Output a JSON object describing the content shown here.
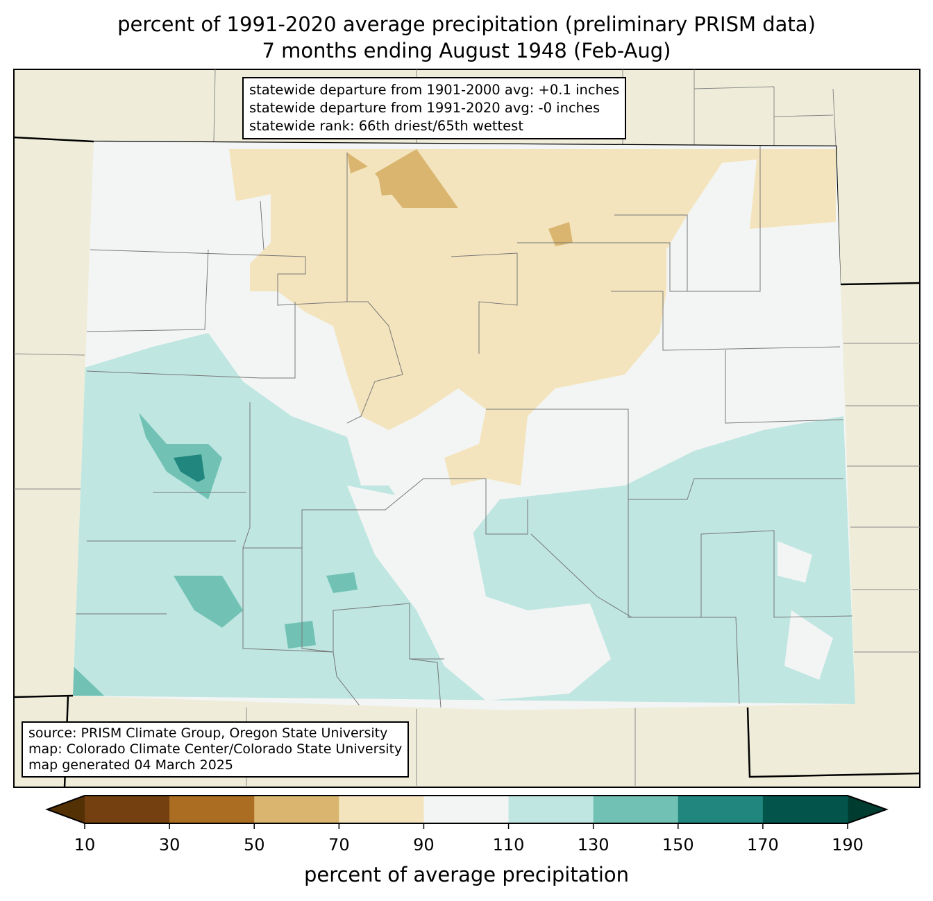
{
  "title": {
    "line1": "percent of 1991-2020 average precipitation (preliminary PRISM data)",
    "line2": "7 months ending August 1948 (Feb-Aug)"
  },
  "stats": {
    "line1": "statewide departure from 1901-2000 avg: +0.1 inches",
    "line2": "statewide departure from 1991-2020 avg: -0 inches",
    "line3": "statewide rank: 66th driest/65th wettest"
  },
  "credits": {
    "line1": "source: PRISM Climate Group, Oregon State University",
    "line2": "map: Colorado Climate Center/Colorado State University",
    "line3": "map generated 04 March 2025"
  },
  "colorbar": {
    "label": "percent of average precipitation",
    "ticks": [
      "10",
      "30",
      "50",
      "70",
      "90",
      "110",
      "130",
      "150",
      "170",
      "190"
    ],
    "colors": [
      "#744010",
      "#ab6d22",
      "#dab56f",
      "#f3e4bd",
      "#f3f5f4",
      "#bfe6e1",
      "#71c2b5",
      "#21867e",
      "#03544a"
    ],
    "under_color": "#543005",
    "over_color": "#003c30"
  },
  "colors": {
    "land": "#efedda",
    "state_default": "#f3f5f4"
  }
}
